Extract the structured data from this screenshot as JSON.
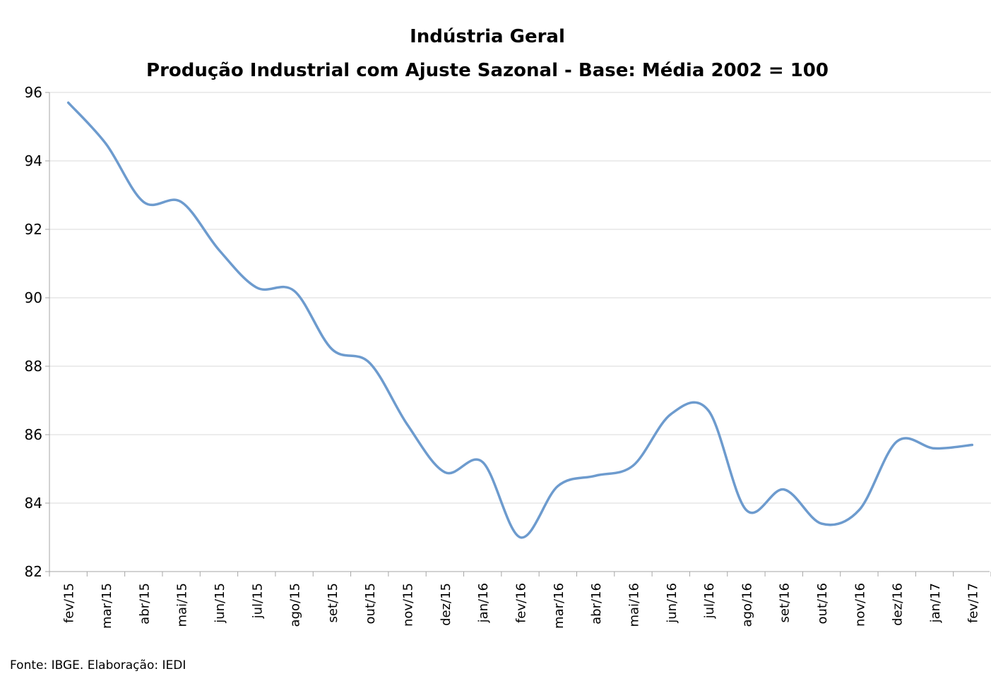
{
  "chart_data": {
    "type": "line",
    "title": "Indústria Geral",
    "subtitle": "Produção Industrial com Ajuste Sazonal - Base: Média 2002 = 100",
    "xlabel": "",
    "ylabel": "",
    "ylim": [
      82,
      96
    ],
    "yticks": [
      "82",
      "84",
      "86",
      "88",
      "90",
      "92",
      "94",
      "96"
    ],
    "categories": [
      "fev/15",
      "mar/15",
      "abr/15",
      "mai/15",
      "jun/15",
      "jul/15",
      "ago/15",
      "set/15",
      "out/15",
      "nov/15",
      "dez/15",
      "jan/16",
      "fev/16",
      "mar/16",
      "abr/16",
      "mai/16",
      "jun/16",
      "jul/16",
      "ago/16",
      "set/16",
      "out/16",
      "nov/16",
      "dez/16",
      "jan/17",
      "fev/17"
    ],
    "series": [
      {
        "values": [
          95.7,
          94.5,
          92.8,
          92.8,
          91.4,
          90.3,
          90.2,
          88.5,
          88.1,
          86.3,
          84.9,
          85.2,
          83.0,
          84.5,
          84.8,
          85.1,
          86.6,
          86.7,
          83.8,
          84.4,
          83.4,
          83.8,
          85.8,
          85.6,
          85.7
        ],
        "color": "#6d9bce"
      }
    ],
    "grid": true,
    "legend": "none",
    "gridline_color": "#d9d9d9",
    "axis_color": "#a6a6a6"
  },
  "footer": {
    "source": "Fonte: IBGE. Elaboração: IEDI"
  }
}
